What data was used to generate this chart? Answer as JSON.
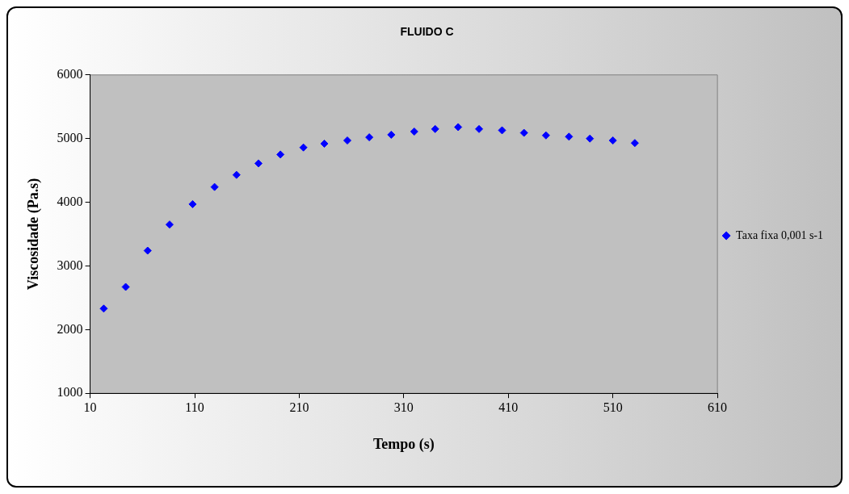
{
  "chart_data": {
    "type": "scatter",
    "title": "FLUIDO C",
    "xlabel": "Tempo (s)",
    "ylabel": "Viscosidade (Pa.s)",
    "x": [
      23,
      44,
      65,
      86,
      108,
      129,
      150,
      171,
      192,
      214,
      234,
      256,
      277,
      298,
      320,
      340,
      362,
      382,
      404,
      425,
      446,
      468,
      488,
      510,
      531
    ],
    "series": [
      {
        "name": "Taxa fixa 0,001 s-1",
        "color": "#0000ff",
        "values": [
          2330,
          2670,
          3240,
          3650,
          3970,
          4240,
          4430,
          4610,
          4750,
          4860,
          4920,
          4970,
          5020,
          5060,
          5110,
          5150,
          5180,
          5150,
          5130,
          5090,
          5050,
          5030,
          5000,
          4970,
          4930
        ]
      }
    ],
    "xlim": [
      10,
      610
    ],
    "xticks": [
      10,
      110,
      210,
      310,
      410,
      510,
      610
    ],
    "ylim": [
      1000,
      6000
    ],
    "yticks": [
      1000,
      2000,
      3000,
      4000,
      5000,
      6000
    ],
    "legend": "right",
    "marker": "diamond"
  }
}
